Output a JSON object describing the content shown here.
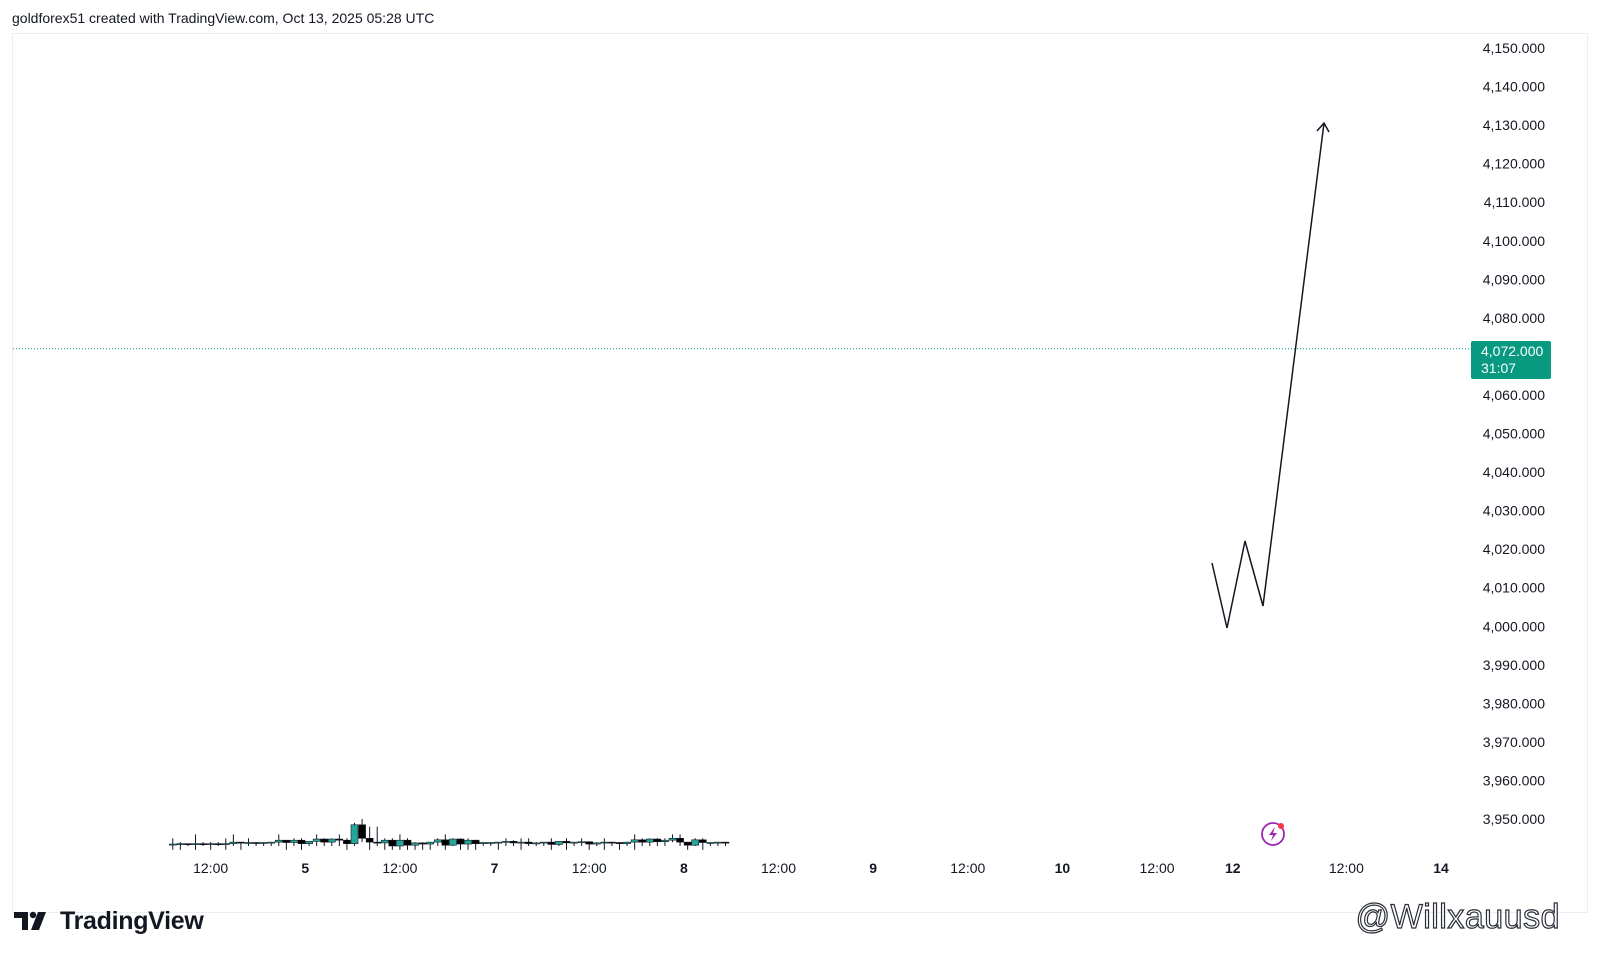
{
  "header": {
    "text": "goldforex51 created with TradingView.com, Oct 13, 2025 05:28 UTC"
  },
  "brand": {
    "name": "TradingView",
    "icon": "tradingview-logo-icon"
  },
  "watermark": {
    "text": "@Willxauusd"
  },
  "price_label": {
    "price": "4,072.000",
    "countdown": "31:07",
    "color": "#089981"
  },
  "colors": {
    "up": "#26a69a",
    "down": "#000000",
    "price_line": "#089981",
    "text": "#131722"
  },
  "chart_data": {
    "type": "candlestick",
    "y_axis": {
      "ticks": [
        3950,
        3960,
        3970,
        3980,
        3990,
        4000,
        4010,
        4020,
        4030,
        4040,
        4050,
        4060,
        4070,
        4080,
        4090,
        4100,
        4110,
        4120,
        4130,
        4140,
        4150
      ],
      "tick_labels": [
        "3,950.000",
        "3,960.000",
        "3,970.000",
        "3,980.000",
        "3,990.000",
        "4,000.000",
        "4,010.000",
        "4,020.000",
        "4,030.000",
        "4,040.000",
        "4,050.000",
        "4,060.000",
        "4,070.000",
        "4,080.000",
        "4,090.000",
        "4,100.000",
        "4,110.000",
        "4,120.000",
        "4,130.000",
        "4,140.000",
        "4,150.000"
      ],
      "range": [
        3942,
        4155
      ],
      "position": "right"
    },
    "x_axis": {
      "range": [
        0,
        9.3
      ],
      "labels": [
        {
          "t": 0.5,
          "text": "12:00",
          "bold": false
        },
        {
          "t": 1.0,
          "text": "5",
          "bold": true
        },
        {
          "t": 1.5,
          "text": "12:00",
          "bold": false
        },
        {
          "t": 2.0,
          "text": "7",
          "bold": true
        },
        {
          "t": 2.5,
          "text": "12:00",
          "bold": false
        },
        {
          "t": 3.0,
          "text": "8",
          "bold": true
        },
        {
          "t": 3.5,
          "text": "12:00",
          "bold": false
        },
        {
          "t": 4.0,
          "text": "9",
          "bold": true
        },
        {
          "t": 4.5,
          "text": "12:00",
          "bold": false
        },
        {
          "t": 5.0,
          "text": "10",
          "bold": true
        },
        {
          "t": 5.5,
          "text": "12:00",
          "bold": false
        },
        {
          "t": 5.9,
          "text": "12",
          "bold": true
        },
        {
          "t": 6.5,
          "text": "12:00",
          "bold": false
        },
        {
          "t": 7.0,
          "text": "14",
          "bold": true
        }
      ]
    },
    "last_price": 4072,
    "candles": [
      [
        0.3,
        3943.5,
        3945,
        3942,
        3943.5
      ],
      [
        0.34,
        3943.5,
        3944,
        3942,
        3943.6
      ],
      [
        0.38,
        3943.6,
        3943.6,
        3943,
        3943.5
      ],
      [
        0.42,
        3943.5,
        3946,
        3942,
        3943.6
      ],
      [
        0.46,
        3943.6,
        3944,
        3943,
        3943.5
      ],
      [
        0.5,
        3943.5,
        3944,
        3942,
        3943.6
      ],
      [
        0.54,
        3943.6,
        3944,
        3943,
        3943.4
      ],
      [
        0.58,
        3943.4,
        3945,
        3942,
        3943.6
      ],
      [
        0.62,
        3943.6,
        3946,
        3943,
        3944
      ],
      [
        0.66,
        3944,
        3944,
        3942,
        3943.8
      ],
      [
        0.7,
        3943.8,
        3945,
        3943,
        3943.9
      ],
      [
        0.74,
        3943.9,
        3944,
        3943,
        3943.7
      ],
      [
        0.78,
        3943.7,
        3944,
        3943,
        3943.9
      ],
      [
        0.82,
        3943.9,
        3944,
        3943,
        3944
      ],
      [
        0.86,
        3944,
        3946,
        3943,
        3944.5
      ],
      [
        0.9,
        3944.5,
        3944.5,
        3942,
        3943.9
      ],
      [
        0.94,
        3943.9,
        3945,
        3943,
        3944.5
      ],
      [
        0.98,
        3944.5,
        3945,
        3942,
        3943.6
      ],
      [
        1.02,
        3943.6,
        3944,
        3943,
        3944.2
      ],
      [
        1.06,
        3944.2,
        3946,
        3943,
        3944.8
      ],
      [
        1.1,
        3944.8,
        3945,
        3943,
        3944
      ],
      [
        1.14,
        3944,
        3945,
        3943,
        3944.8
      ],
      [
        1.18,
        3944.8,
        3946,
        3943,
        3944.5
      ],
      [
        1.22,
        3944.5,
        3945,
        3942,
        3943.6
      ],
      [
        1.26,
        3943.6,
        3949,
        3943,
        3948.5
      ],
      [
        1.3,
        3948.5,
        3950,
        3944,
        3945
      ],
      [
        1.34,
        3945,
        3948,
        3942,
        3944
      ],
      [
        1.38,
        3944,
        3948,
        3943,
        3943.8
      ],
      [
        1.42,
        3943.8,
        3945,
        3942,
        3944.5
      ],
      [
        1.46,
        3944.5,
        3945,
        3942,
        3943
      ],
      [
        1.5,
        3943,
        3946,
        3942,
        3944.5
      ],
      [
        1.54,
        3944.5,
        3945,
        3942,
        3943.2
      ],
      [
        1.58,
        3943.2,
        3944,
        3942,
        3943.8
      ],
      [
        1.62,
        3943.8,
        3944,
        3942,
        3943.5
      ],
      [
        1.66,
        3943.5,
        3944,
        3942,
        3944
      ],
      [
        1.7,
        3944,
        3945,
        3943,
        3944.6
      ],
      [
        1.74,
        3944.6,
        3946,
        3942,
        3943.2
      ],
      [
        1.78,
        3943.2,
        3945,
        3943,
        3944.8
      ],
      [
        1.82,
        3944.8,
        3945,
        3942,
        3943.5
      ],
      [
        1.86,
        3943.5,
        3945,
        3942,
        3944.5
      ],
      [
        1.9,
        3944.5,
        3944.6,
        3942,
        3943.6
      ],
      [
        1.94,
        3943.6,
        3944,
        3943,
        3943.9
      ],
      [
        1.98,
        3943.9,
        3944,
        3943,
        3943.9
      ],
      [
        2.02,
        3943.9,
        3944,
        3942,
        3944
      ],
      [
        2.06,
        3944,
        3945,
        3943,
        3944.2
      ],
      [
        2.1,
        3944.2,
        3944.5,
        3943,
        3943.8
      ],
      [
        2.14,
        3943.8,
        3945,
        3942,
        3944
      ],
      [
        2.18,
        3944,
        3945,
        3943,
        3943.6
      ],
      [
        2.22,
        3943.6,
        3944,
        3943,
        3943.8
      ],
      [
        2.26,
        3943.8,
        3944,
        3943,
        3944
      ],
      [
        2.3,
        3944,
        3945,
        3942,
        3943.4
      ],
      [
        2.34,
        3943.4,
        3944,
        3943,
        3944.2
      ],
      [
        2.38,
        3944.2,
        3945,
        3942,
        3943.8
      ],
      [
        2.42,
        3943.8,
        3944,
        3943,
        3944
      ],
      [
        2.46,
        3944,
        3945,
        3943,
        3944.1
      ],
      [
        2.5,
        3944.1,
        3944.2,
        3942,
        3943.5
      ],
      [
        2.54,
        3943.5,
        3944,
        3943,
        3943.8
      ],
      [
        2.58,
        3943.8,
        3945,
        3942,
        3944
      ],
      [
        2.62,
        3944,
        3944,
        3943,
        3943.9
      ],
      [
        2.66,
        3943.9,
        3944,
        3942,
        3943.6
      ],
      [
        2.7,
        3943.6,
        3944,
        3943,
        3944
      ],
      [
        2.74,
        3944,
        3946,
        3942,
        3944.6
      ],
      [
        2.78,
        3944.6,
        3945,
        3943,
        3944
      ],
      [
        2.82,
        3944,
        3945,
        3943,
        3944.8
      ],
      [
        2.86,
        3944.8,
        3945,
        3943,
        3944.1
      ],
      [
        2.9,
        3944.1,
        3945,
        3943,
        3944.5
      ],
      [
        2.94,
        3944.5,
        3946,
        3944,
        3945
      ],
      [
        2.98,
        3945,
        3946,
        3943,
        3944
      ],
      [
        3.02,
        3944,
        3944,
        3942,
        3943.2
      ],
      [
        3.06,
        3943.2,
        3945,
        3943,
        3944.6
      ],
      [
        3.1,
        3944.6,
        3945,
        3942,
        3943.9
      ],
      [
        3.14,
        3943.9,
        3944,
        3943,
        3943.9
      ],
      [
        3.18,
        3943.9,
        3944,
        3943,
        3944
      ],
      [
        3.22,
        3944,
        3944,
        3943,
        3943.8
      ]
    ]
  }
}
